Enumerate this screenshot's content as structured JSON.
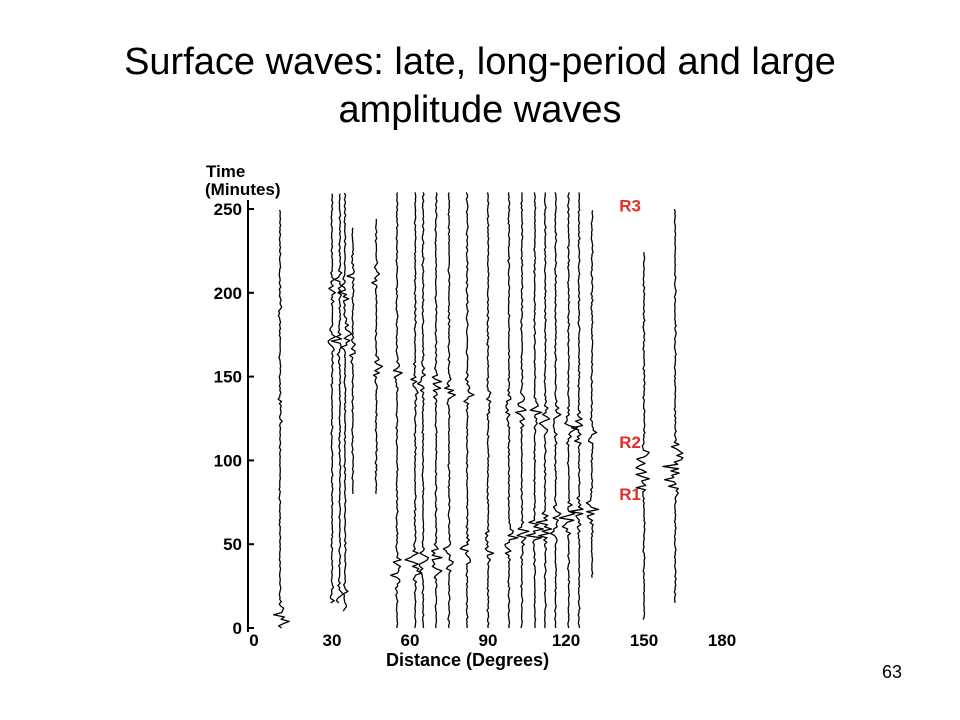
{
  "slide": {
    "title_line1": "Surface waves: late, long-period and large",
    "title_line2": "amplitude waves",
    "page_number": "63"
  },
  "chart_data": {
    "type": "line",
    "subtype": "record-section seismogram",
    "ylabel_line1": "Time",
    "ylabel_line2": "(Minutes)",
    "xlabel": "Distance (Degrees)",
    "xlim": [
      0,
      180
    ],
    "ylim": [
      0,
      250
    ],
    "xticks": [
      0,
      30,
      60,
      90,
      120,
      150,
      180
    ],
    "yticks": [
      0,
      50,
      100,
      150,
      200,
      250
    ],
    "trace_color": "#000000",
    "label_color": "#e0302a",
    "traces": [
      {
        "distance": 10,
        "t_start": 0,
        "t_end": 250,
        "arrivals": [
          {
            "t": 5,
            "amp": 14
          },
          {
            "t": 130,
            "amp": 3
          },
          {
            "t": 190,
            "amp": 3
          }
        ]
      },
      {
        "distance": 30,
        "t_start": 15,
        "t_end": 260,
        "arrivals": [
          {
            "t": 20,
            "amp": 4
          },
          {
            "t": 170,
            "amp": 6
          },
          {
            "t": 200,
            "amp": 4
          }
        ]
      },
      {
        "distance": 33,
        "t_start": 15,
        "t_end": 260,
        "arrivals": [
          {
            "t": 20,
            "amp": 5
          },
          {
            "t": 170,
            "amp": 8
          },
          {
            "t": 205,
            "amp": 6
          }
        ]
      },
      {
        "distance": 35,
        "t_start": 10,
        "t_end": 260,
        "arrivals": [
          {
            "t": 15,
            "amp": 6
          },
          {
            "t": 175,
            "amp": 9
          },
          {
            "t": 200,
            "amp": 7
          }
        ]
      },
      {
        "distance": 38,
        "t_start": 80,
        "t_end": 240,
        "arrivals": [
          {
            "t": 165,
            "amp": 6
          },
          {
            "t": 210,
            "amp": 5
          }
        ]
      },
      {
        "distance": 47,
        "t_start": 80,
        "t_end": 245,
        "arrivals": [
          {
            "t": 155,
            "amp": 6
          },
          {
            "t": 210,
            "amp": 5
          }
        ]
      },
      {
        "distance": 55,
        "t_start": 0,
        "t_end": 260,
        "arrivals": [
          {
            "t": 35,
            "amp": 10
          },
          {
            "t": 150,
            "amp": 6
          }
        ]
      },
      {
        "distance": 62,
        "t_start": 0,
        "t_end": 260,
        "arrivals": [
          {
            "t": 38,
            "amp": 12
          },
          {
            "t": 148,
            "amp": 7
          }
        ]
      },
      {
        "distance": 65,
        "t_start": 0,
        "t_end": 260,
        "arrivals": [
          {
            "t": 40,
            "amp": 9
          },
          {
            "t": 147,
            "amp": 6
          }
        ]
      },
      {
        "distance": 70,
        "t_start": 0,
        "t_end": 260,
        "arrivals": [
          {
            "t": 40,
            "amp": 12
          },
          {
            "t": 145,
            "amp": 7
          }
        ]
      },
      {
        "distance": 75,
        "t_start": 0,
        "t_end": 260,
        "arrivals": [
          {
            "t": 43,
            "amp": 10
          },
          {
            "t": 142,
            "amp": 7
          }
        ]
      },
      {
        "distance": 82,
        "t_start": 0,
        "t_end": 260,
        "arrivals": [
          {
            "t": 45,
            "amp": 9
          },
          {
            "t": 140,
            "amp": 6
          }
        ]
      },
      {
        "distance": 90,
        "t_start": 0,
        "t_end": 260,
        "arrivals": [
          {
            "t": 48,
            "amp": 8
          },
          {
            "t": 135,
            "amp": 6
          }
        ]
      },
      {
        "distance": 98,
        "t_start": 0,
        "t_end": 260,
        "arrivals": [
          {
            "t": 53,
            "amp": 10
          },
          {
            "t": 132,
            "amp": 7
          }
        ]
      },
      {
        "distance": 103,
        "t_start": 0,
        "t_end": 260,
        "arrivals": [
          {
            "t": 55,
            "amp": 9
          },
          {
            "t": 130,
            "amp": 8
          }
        ]
      },
      {
        "distance": 108,
        "t_start": 0,
        "t_end": 260,
        "arrivals": [
          {
            "t": 57,
            "amp": 10
          },
          {
            "t": 128,
            "amp": 9
          }
        ]
      },
      {
        "distance": 112,
        "t_start": 0,
        "t_end": 260,
        "arrivals": [
          {
            "t": 60,
            "amp": 11
          },
          {
            "t": 125,
            "amp": 9
          }
        ]
      },
      {
        "distance": 116,
        "t_start": 0,
        "t_end": 260,
        "arrivals": [
          {
            "t": 62,
            "amp": 12
          },
          {
            "t": 123,
            "amp": 10
          }
        ]
      },
      {
        "distance": 121,
        "t_start": 0,
        "t_end": 260,
        "arrivals": [
          {
            "t": 65,
            "amp": 12
          },
          {
            "t": 120,
            "amp": 10
          }
        ]
      },
      {
        "distance": 125,
        "t_start": 0,
        "t_end": 260,
        "arrivals": [
          {
            "t": 67,
            "amp": 13
          },
          {
            "t": 118,
            "amp": 9
          }
        ]
      },
      {
        "distance": 130,
        "t_start": 30,
        "t_end": 250,
        "arrivals": [
          {
            "t": 70,
            "amp": 10
          },
          {
            "t": 115,
            "amp": 6
          }
        ]
      },
      {
        "distance": 150,
        "t_start": 5,
        "t_end": 225,
        "arrivals": [
          {
            "t": 88,
            "amp": 12
          },
          {
            "t": 100,
            "amp": 8
          }
        ]
      },
      {
        "distance": 162,
        "t_start": 15,
        "t_end": 250,
        "arrivals": [
          {
            "t": 90,
            "amp": 16
          },
          {
            "t": 103,
            "amp": 12
          }
        ]
      }
    ],
    "annotations": [
      {
        "text": "R3",
        "distance": 137,
        "t": 252
      },
      {
        "text": "R2",
        "distance": 137,
        "t": 111
      },
      {
        "text": "R1",
        "distance": 137,
        "t": 80
      }
    ]
  }
}
